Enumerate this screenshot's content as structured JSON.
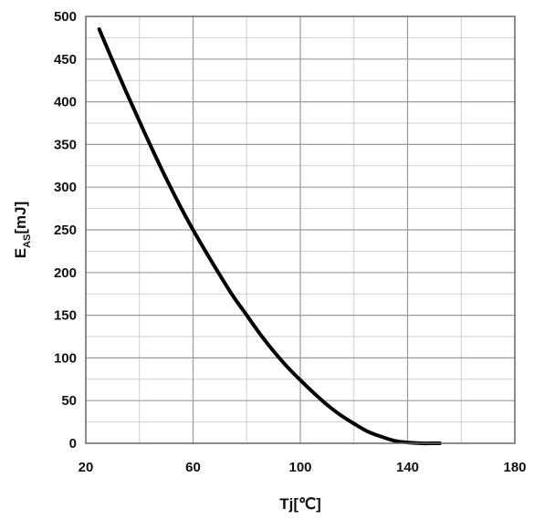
{
  "chart_data": {
    "type": "line",
    "xlabel": "Tj[℃]",
    "ylabel_main": "E",
    "ylabel_sub": "AS",
    "ylabel_unit": "[mJ]",
    "xlim": [
      20,
      180
    ],
    "ylim": [
      0,
      500
    ],
    "x_ticks": [
      20,
      60,
      100,
      140,
      180
    ],
    "y_ticks": [
      0,
      50,
      100,
      150,
      200,
      250,
      300,
      350,
      400,
      450,
      500
    ],
    "grid": true,
    "series": [
      {
        "color": "#000000",
        "x": [
          25,
          30,
          35,
          40,
          45,
          50,
          55,
          60,
          65,
          70,
          75,
          80,
          85,
          90,
          95,
          100,
          105,
          110,
          115,
          120,
          125,
          130,
          135,
          140,
          145,
          150,
          152
        ],
        "y": [
          485,
          448,
          412,
          377,
          343,
          310,
          279,
          250,
          223,
          197,
          172,
          150,
          128,
          108,
          90,
          74,
          59,
          45,
          33,
          23,
          14,
          8,
          3,
          1,
          0,
          0,
          0
        ]
      }
    ]
  }
}
